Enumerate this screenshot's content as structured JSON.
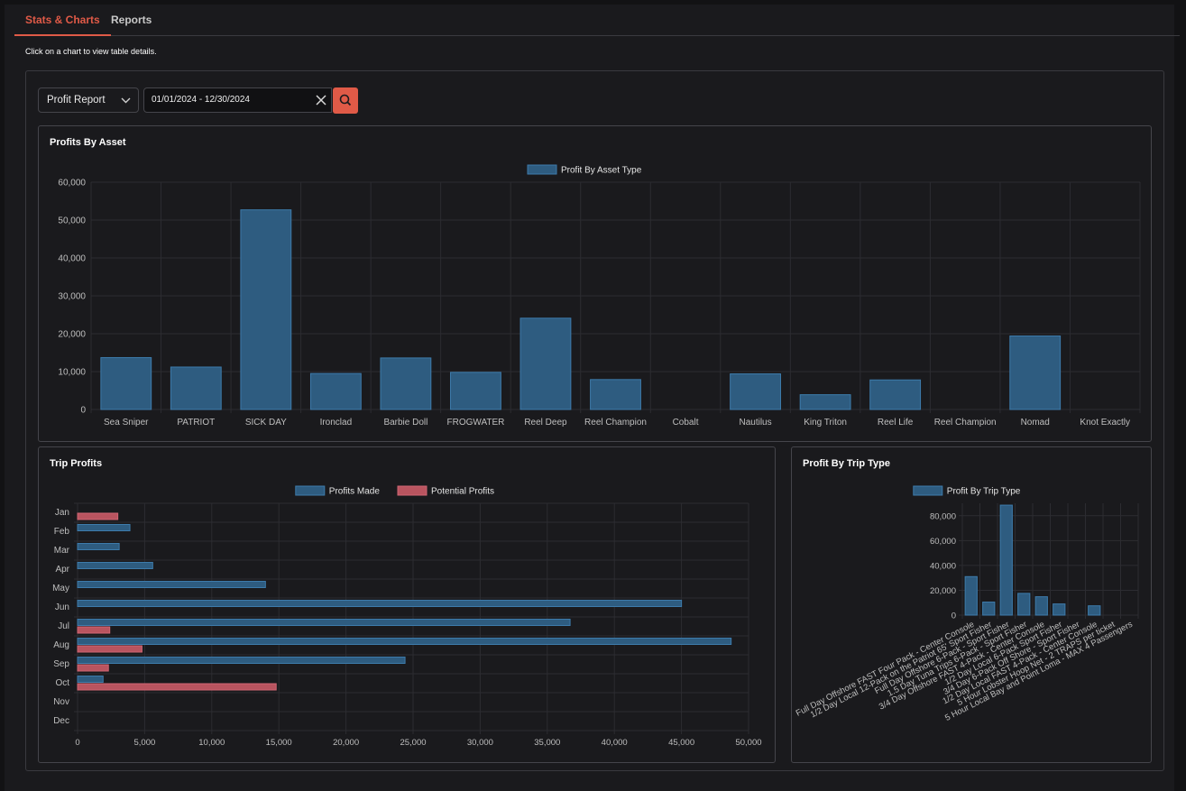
{
  "tabs": [
    {
      "label": "Stats & Charts",
      "active": true
    },
    {
      "label": "Reports",
      "active": false
    }
  ],
  "hint": "Click on a chart to view table details.",
  "controls": {
    "report_select": "Profit Report",
    "date_range": "01/01/2024 - 12/30/2024",
    "search_icon": "search-icon",
    "clear_icon": "close-icon",
    "accent_color": "#e05a47"
  },
  "cards": {
    "asset": {
      "title": "Profits By Asset"
    },
    "trip": {
      "title": "Trip Profits"
    },
    "type": {
      "title": "Profit By Trip Type"
    }
  },
  "colors": {
    "profit_fill": "#2e5c80",
    "profit_stroke": "#3d7bab",
    "potential_fill": "#b9545f",
    "potential_stroke": "#d06573"
  },
  "chart_data": [
    {
      "id": "asset",
      "type": "bar",
      "categories": [
        "Sea Sniper",
        "PATRIOT",
        "SICK DAY",
        "Ironclad",
        "Barbie Doll",
        "FROGWATER",
        "Reel Deep",
        "Reel Champion",
        "Cobalt",
        "Nautilus",
        "King Triton",
        "Reel Life",
        "Reel Champion",
        "Nomad",
        "Knot Exactly"
      ],
      "series": [
        {
          "name": "Profit By Asset Type",
          "values": [
            13700,
            11200,
            52700,
            9500,
            13600,
            9800,
            24100,
            7900,
            0,
            9400,
            3900,
            7800,
            0,
            19400,
            0
          ]
        }
      ],
      "ylim": [
        0,
        60000
      ],
      "yticks": [
        "0",
        "10,000",
        "20,000",
        "30,000",
        "40,000",
        "50,000",
        "60,000"
      ],
      "legend": "top-center",
      "grid": true
    },
    {
      "id": "trip",
      "type": "bar",
      "orientation": "horizontal",
      "categories": [
        "Jan",
        "Feb",
        "Mar",
        "Apr",
        "May",
        "Jun",
        "Jul",
        "Aug",
        "Sep",
        "Oct",
        "Nov",
        "Dec"
      ],
      "series": [
        {
          "name": "Profits Made",
          "values": [
            0,
            3900,
            3100,
            5600,
            14000,
            45000,
            36700,
            48700,
            24400,
            1900,
            0,
            0
          ]
        },
        {
          "name": "Potential Profits",
          "values": [
            3000,
            0,
            0,
            0,
            0,
            0,
            2400,
            4800,
            2300,
            14800,
            0,
            0
          ]
        }
      ],
      "xlim": [
        0,
        50000
      ],
      "xticks": [
        "0",
        "5,000",
        "10,000",
        "15,000",
        "20,000",
        "25,000",
        "30,000",
        "35,000",
        "40,000",
        "45,000",
        "50,000"
      ],
      "legend": "top-center",
      "grid": true
    },
    {
      "id": "type",
      "type": "bar",
      "categories": [
        "Full Day Offshore FAST Four Pack - Center Console",
        "1/2 Day Local 12-Pack on the Patriot 65' Sport Fisher",
        "Full Day Offshore 6-Pack - Sport Fisher",
        "1.5 Day Tuna Trips 6-Pack - Sport Fisher",
        "3/4 Day Offshore FAST 4-Pack - Center Console",
        "1/2 Day Local 6-Pack Sport Fisher",
        "3/4 Day 6-Pack Off Shore - Sport Fisher",
        "1/2 Day Local FAST 4-Pack - Center Console",
        "5 Hour Lobster Hoop Net - 2 TRAPS per ticket",
        "5 Hour Local Bay and Point Loma - MAX 4 Passengers"
      ],
      "series": [
        {
          "name": "Profit By Trip Type",
          "values": [
            31000,
            10500,
            88500,
            17500,
            14800,
            9000,
            0,
            7500,
            0,
            0
          ]
        }
      ],
      "ylim": [
        0,
        90000
      ],
      "yticks": [
        "0",
        "20,000",
        "40,000",
        "60,000",
        "80,000"
      ],
      "legend": "top-center",
      "grid": true
    }
  ]
}
